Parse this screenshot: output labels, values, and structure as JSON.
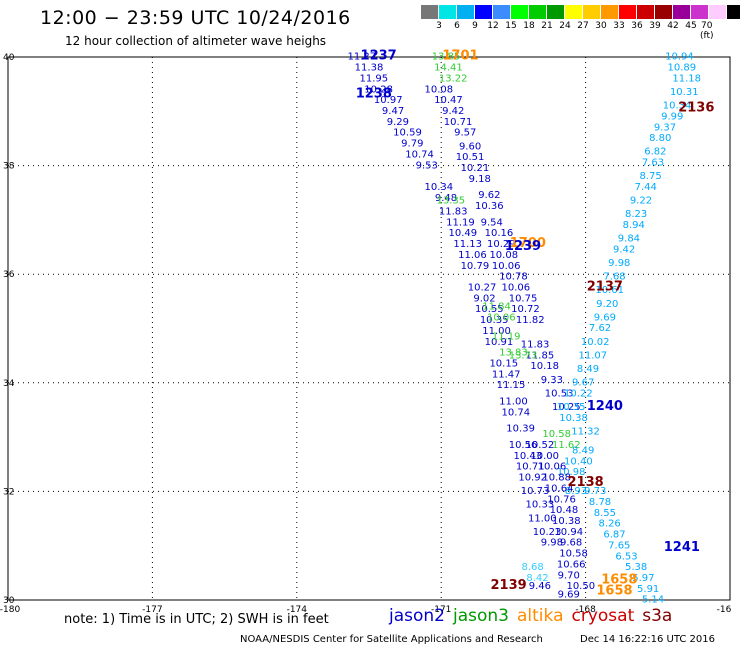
{
  "title": "12:00 − 23:59 UTC 10/24/2016",
  "subtitle": "12 hour collection of altimeter wave heighs",
  "colorbar": {
    "colors": [
      "#777777",
      "#00e5e5",
      "#00b0f0",
      "#0000ff",
      "#3c8cff",
      "#00ff00",
      "#00cc00",
      "#009900",
      "#ffff00",
      "#ffcc00",
      "#ff9900",
      "#ff0000",
      "#cc0000",
      "#990000",
      "#990099",
      "#cc33cc",
      "#ffccff",
      "#000000"
    ],
    "labels": [
      "3",
      "6",
      "9",
      "12",
      "15",
      "18",
      "21",
      "24",
      "27",
      "30",
      "33",
      "36",
      "39",
      "42",
      "45",
      "70 (ft)"
    ]
  },
  "map": {
    "lon_ticks": [
      "-180",
      "-177",
      "-174",
      "-171",
      "-168",
      "-16"
    ],
    "lat_ticks": [
      "40",
      "38",
      "36",
      "34",
      "32",
      "30"
    ],
    "lon_range": [
      -180,
      -165
    ],
    "lat_range": [
      30,
      40
    ]
  },
  "pass_labels": [
    {
      "text": "1237",
      "color": "#0000cc",
      "lon": -172.3,
      "lat": 39.95
    },
    {
      "text": "1701",
      "color": "#ff8c00",
      "lon": -170.6,
      "lat": 39.95
    },
    {
      "text": "1238",
      "color": "#0000cc",
      "lon": -172.4,
      "lat": 39.25
    },
    {
      "text": "2136",
      "color": "#800000",
      "lon": -165.7,
      "lat": 39.0
    },
    {
      "text": "1700",
      "color": "#ff8c00",
      "lon": -169.2,
      "lat": 36.5
    },
    {
      "text": "1239",
      "color": "#0000cc",
      "lon": -169.3,
      "lat": 36.45
    },
    {
      "text": "2137",
      "color": "#800000",
      "lon": -167.6,
      "lat": 35.7
    },
    {
      "text": "1240",
      "color": "#0000cc",
      "lon": -167.6,
      "lat": 33.5
    },
    {
      "text": "2138",
      "color": "#800000",
      "lon": -168.0,
      "lat": 32.1
    },
    {
      "text": "1241",
      "color": "#0000cc",
      "lon": -166.0,
      "lat": 30.9
    },
    {
      "text": "1658",
      "color": "#ff8c00",
      "lon": -167.3,
      "lat": 30.3
    },
    {
      "text": "1658",
      "color": "#ff8c00",
      "lon": -167.4,
      "lat": 30.1
    },
    {
      "text": "2139",
      "color": "#800000",
      "lon": -169.6,
      "lat": 30.2
    }
  ],
  "tracks": [
    {
      "name": "jason2-1237",
      "color": "#0000cc",
      "points": [
        [
          -172.65,
          39.95,
          "11.27"
        ],
        [
          -172.5,
          39.75,
          "11.38"
        ],
        [
          -172.4,
          39.55,
          "11.95"
        ],
        [
          -172.3,
          39.35,
          "10.28"
        ],
        [
          -172.1,
          39.15,
          "10.97"
        ],
        [
          -172.0,
          38.95,
          "9.47"
        ],
        [
          -171.9,
          38.75,
          "9.29"
        ],
        [
          -171.7,
          38.55,
          "10.59"
        ],
        [
          -171.6,
          38.35,
          "9.79"
        ],
        [
          -171.45,
          38.15,
          "10.74"
        ],
        [
          -171.3,
          37.95,
          "9.53"
        ],
        [
          -171.05,
          37.55,
          "10.34"
        ],
        [
          -170.9,
          37.35,
          "9.48"
        ],
        [
          -170.75,
          37.1,
          "11.83"
        ],
        [
          -170.6,
          36.9,
          "11.19"
        ],
        [
          -170.55,
          36.7,
          "10.49"
        ],
        [
          -170.45,
          36.5,
          "11.13"
        ],
        [
          -170.35,
          36.3,
          "11.06"
        ],
        [
          -170.3,
          36.1,
          "10.79"
        ],
        [
          -170.15,
          35.7,
          "10.27"
        ],
        [
          -170.1,
          35.5,
          "9.02"
        ],
        [
          -170.0,
          35.3,
          "10.55"
        ],
        [
          -169.9,
          35.1,
          "10.35"
        ],
        [
          -169.85,
          34.9,
          "11.00"
        ],
        [
          -169.8,
          34.7,
          "10.91"
        ],
        [
          -169.7,
          34.3,
          "10.15"
        ],
        [
          -169.65,
          34.1,
          "11.47"
        ],
        [
          -169.55,
          33.9,
          "11.15"
        ],
        [
          -169.5,
          33.6,
          "11.00"
        ],
        [
          -169.45,
          33.4,
          "10.74"
        ],
        [
          -169.35,
          33.1,
          "10.39"
        ],
        [
          -169.3,
          32.8,
          "10.56"
        ],
        [
          -169.2,
          32.6,
          "10.43"
        ],
        [
          -169.15,
          32.4,
          "10.71"
        ],
        [
          -169.1,
          32.2,
          "10.92"
        ],
        [
          -169.05,
          31.95,
          "10.73"
        ],
        [
          -168.95,
          31.7,
          "10.33"
        ],
        [
          -168.9,
          31.45,
          "11.00"
        ],
        [
          -168.8,
          31.2,
          "10.23"
        ],
        [
          -168.7,
          31.0,
          "9.98"
        ],
        [
          -168.95,
          30.2,
          "9.46"
        ]
      ]
    },
    {
      "name": "jason3-1701",
      "color": "#33cc33",
      "points": [
        [
          -170.9,
          39.95,
          "13.85"
        ],
        [
          -170.85,
          39.75,
          "14.41"
        ],
        [
          -170.75,
          39.55,
          "13.22"
        ],
        [
          -170.8,
          37.3,
          "13.35"
        ]
      ]
    },
    {
      "name": "jason2-1238",
      "color": "#0000cc",
      "points": [
        [
          -171.05,
          39.35,
          "10.08"
        ],
        [
          -170.85,
          39.15,
          "10.47"
        ],
        [
          -170.75,
          38.95,
          "9.42"
        ],
        [
          -170.65,
          38.75,
          "10.71"
        ],
        [
          -170.5,
          38.55,
          "9.57"
        ],
        [
          -170.4,
          38.3,
          "9.60"
        ],
        [
          -170.4,
          38.1,
          "10.51"
        ],
        [
          -170.3,
          37.9,
          "10.21"
        ],
        [
          -170.2,
          37.7,
          "9.18"
        ],
        [
          -170.0,
          37.4,
          "9.62"
        ],
        [
          -170.0,
          37.2,
          "10.36"
        ],
        [
          -169.95,
          36.9,
          "9.54"
        ],
        [
          -169.8,
          36.7,
          "10.16"
        ],
        [
          -169.75,
          36.5,
          "10.29"
        ],
        [
          -169.7,
          36.3,
          "10.08"
        ],
        [
          -169.65,
          36.1,
          "10.06"
        ],
        [
          -169.5,
          35.9,
          "10.78"
        ],
        [
          -169.45,
          35.7,
          "10.06"
        ],
        [
          -169.3,
          35.5,
          "10.75"
        ],
        [
          -169.25,
          35.3,
          "10.72"
        ],
        [
          -169.15,
          35.1,
          "11.82"
        ],
        [
          -169.05,
          34.65,
          "11.83"
        ],
        [
          -168.95,
          34.45,
          "11.85"
        ],
        [
          -168.85,
          34.25,
          "10.18"
        ],
        [
          -168.7,
          34.0,
          "9.33"
        ],
        [
          -168.55,
          33.75,
          "10.53"
        ],
        [
          -168.4,
          33.5,
          "10.25"
        ]
      ]
    },
    {
      "name": "jason2-2136",
      "color": "#00aaff",
      "points": [
        [
          -166.05,
          39.95,
          "10.94"
        ],
        [
          -166.0,
          39.75,
          "10.89"
        ],
        [
          -165.9,
          39.55,
          "11.18"
        ],
        [
          -165.95,
          39.3,
          "10.31"
        ],
        [
          -166.1,
          39.05,
          "10.34"
        ],
        [
          -166.2,
          38.85,
          "9.99"
        ],
        [
          -166.35,
          38.65,
          "9.37"
        ],
        [
          -166.45,
          38.45,
          "8.80"
        ],
        [
          -166.55,
          38.2,
          "6.82"
        ],
        [
          -166.6,
          38.0,
          "7.63"
        ],
        [
          -166.65,
          37.75,
          "8.75"
        ],
        [
          -166.75,
          37.55,
          "7.44"
        ],
        [
          -166.85,
          37.3,
          "9.22"
        ],
        [
          -166.95,
          37.05,
          "8.23"
        ],
        [
          -167.0,
          36.85,
          "8.94"
        ],
        [
          -167.1,
          36.6,
          "9.84"
        ],
        [
          -167.2,
          36.4,
          "9.42"
        ],
        [
          -167.3,
          36.15,
          "9.98"
        ],
        [
          -167.4,
          35.9,
          "7.68"
        ],
        [
          -167.5,
          35.65,
          "10.61"
        ],
        [
          -167.55,
          35.4,
          "9.20"
        ],
        [
          -167.6,
          35.15,
          "9.69"
        ],
        [
          -167.7,
          34.95,
          "7.62"
        ],
        [
          -167.8,
          34.7,
          "10.02"
        ],
        [
          -167.85,
          34.45,
          "11.07"
        ],
        [
          -167.95,
          34.2,
          "8.49"
        ],
        [
          -168.05,
          33.95,
          "9.67"
        ],
        [
          -168.15,
          33.75,
          "10.22"
        ]
      ]
    },
    {
      "name": "cryosat-2137",
      "color": "#33cc33",
      "points": [
        [
          -169.85,
          35.35,
          "11.84"
        ],
        [
          -169.75,
          35.15,
          "10.06"
        ],
        [
          -169.65,
          34.8,
          "11.19"
        ],
        [
          -169.5,
          34.5,
          "13.83"
        ],
        [
          -169.3,
          34.45,
          "13.73"
        ],
        [
          -168.6,
          33.0,
          "10.58"
        ],
        [
          -168.4,
          32.8,
          "11.62"
        ]
      ]
    },
    {
      "name": "jason2-1240",
      "color": "#00aaff",
      "points": [
        [
          -168.3,
          33.5,
          "10.35"
        ],
        [
          -168.25,
          33.3,
          "10.38"
        ],
        [
          -168.0,
          33.05,
          "11.32"
        ],
        [
          -168.05,
          32.7,
          "8.49"
        ],
        [
          -168.15,
          32.5,
          "10.40"
        ],
        [
          -168.3,
          32.3,
          "10.98"
        ],
        [
          -168.2,
          31.95,
          "8.93"
        ]
      ]
    },
    {
      "name": "jason2-1241",
      "color": "#00aaff",
      "points": [
        [
          -167.8,
          31.95,
          "9.73"
        ],
        [
          -167.7,
          31.75,
          "8.78"
        ],
        [
          -167.6,
          31.55,
          "8.55"
        ],
        [
          -167.5,
          31.35,
          "8.26"
        ],
        [
          -167.4,
          31.15,
          "6.87"
        ],
        [
          -167.3,
          30.95,
          "7.65"
        ],
        [
          -167.15,
          30.75,
          "6.53"
        ],
        [
          -166.95,
          30.55,
          "5.38"
        ],
        [
          -166.8,
          30.35,
          "5.97"
        ],
        [
          -166.7,
          30.15,
          "5.91"
        ],
        [
          -166.6,
          29.95,
          "5.14"
        ]
      ]
    },
    {
      "name": "jason2-2139",
      "color": "#0000cc",
      "points": [
        [
          -168.95,
          32.8,
          "10.52"
        ],
        [
          -168.85,
          32.6,
          "10.00"
        ],
        [
          -168.7,
          32.4,
          "10.06"
        ],
        [
          -168.6,
          32.2,
          "10.88"
        ],
        [
          -168.55,
          32.0,
          "10.64"
        ],
        [
          -168.5,
          31.8,
          "10.76"
        ],
        [
          -168.45,
          31.6,
          "10.48"
        ],
        [
          -168.4,
          31.4,
          "10.38"
        ],
        [
          -168.35,
          31.2,
          "10.94"
        ],
        [
          -168.3,
          31.0,
          "9.68"
        ],
        [
          -168.25,
          30.8,
          "10.58"
        ],
        [
          -168.3,
          30.6,
          "10.66"
        ],
        [
          -168.35,
          30.4,
          "9.70"
        ],
        [
          -168.1,
          30.2,
          "10.50"
        ],
        [
          -168.35,
          30.05,
          "9.69"
        ]
      ]
    },
    {
      "name": "altika-1658",
      "color": "#33ccff",
      "points": [
        [
          -169.1,
          30.55,
          "8.68"
        ],
        [
          -169.0,
          30.35,
          "8.42"
        ]
      ]
    }
  ],
  "note": "note: 1) Time is in UTC; 2) SWH is in feet",
  "legend": [
    {
      "text": "jason2",
      "color": "#0000cc"
    },
    {
      "text": "jason3",
      "color": "#009900"
    },
    {
      "text": "altika",
      "color": "#ff8c00"
    },
    {
      "text": "cryosat",
      "color": "#cc0000"
    },
    {
      "text": "s3a",
      "color": "#800000"
    }
  ],
  "footer_left": "NOAA/NESDIS Center for Satellite Applications and Research",
  "footer_right": "Dec 14 16:22:16 UTC 2016"
}
